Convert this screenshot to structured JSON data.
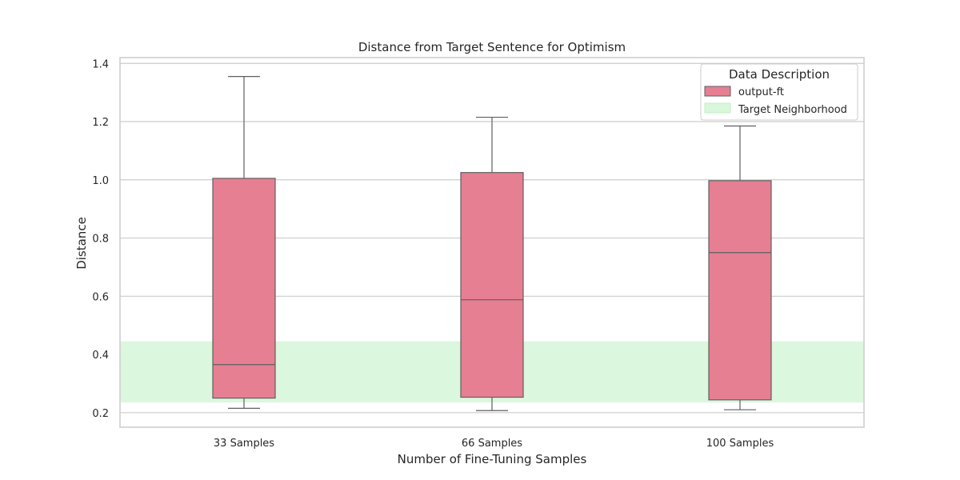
{
  "chart_data": {
    "type": "box",
    "title": "Distance from Target Sentence for Optimism",
    "xlabel": "Number of Fine-Tuning Samples",
    "ylabel": "Distance",
    "ylim": [
      0.15,
      1.42
    ],
    "yticks": [
      0.2,
      0.4,
      0.6,
      0.8,
      1.0,
      1.2,
      1.4
    ],
    "ytick_labels": [
      "0.2",
      "0.4",
      "0.6",
      "0.8",
      "1.0",
      "1.2",
      "1.4"
    ],
    "categories": [
      "33 Samples",
      "66 Samples",
      "100 Samples"
    ],
    "series": [
      {
        "name": "output-ft",
        "color": "#e67f92",
        "boxes": [
          {
            "whisker_low": 0.215,
            "q1": 0.25,
            "median": 0.365,
            "q3": 1.005,
            "whisker_high": 1.355
          },
          {
            "whisker_low": 0.207,
            "q1": 0.253,
            "median": 0.588,
            "q3": 1.025,
            "whisker_high": 1.215
          },
          {
            "whisker_low": 0.21,
            "q1": 0.244,
            "median": 0.75,
            "q3": 0.997,
            "whisker_high": 1.185
          }
        ]
      }
    ],
    "band": {
      "name": "Target Neighborhood",
      "low": 0.235,
      "high": 0.445,
      "color": "#d9f7db"
    },
    "legend": {
      "title": "Data Description",
      "placement": "top-right",
      "entries": [
        "output-ft",
        "Target Neighborhood"
      ]
    },
    "grid": "horizontal",
    "colors": {
      "box_edge": "#5f5f5f",
      "grid": "#cccccc",
      "frame": "#cccccc"
    }
  }
}
